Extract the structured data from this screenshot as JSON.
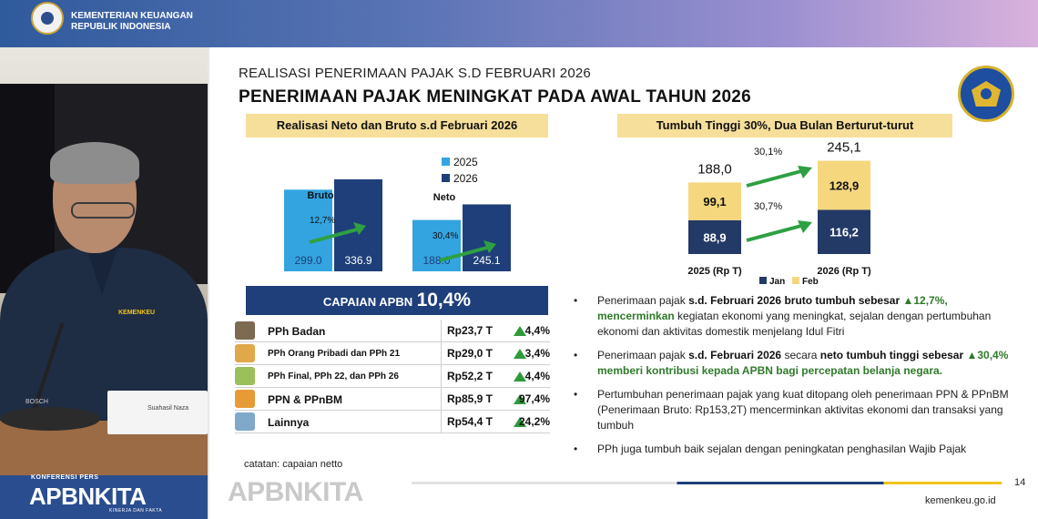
{
  "header": {
    "ministry_line1": "KEMENTERIAN KEUANGAN",
    "ministry_line2": "REPUBLIK INDONESIA"
  },
  "video": {
    "badge": "KEMENKEU",
    "nameplate": "Suahasil Naza",
    "mic_brand": "BOSCH"
  },
  "brand_left": {
    "kicker": "KONFERENSI PERS",
    "name": "APBNKITA",
    "tagline": "KINERJA DAN FAKTA"
  },
  "slide": {
    "kicker": "REALISASI PENERIMAAN PAJAK S.D FEBRUARI 2026",
    "headline": "PENERIMAAN PAJAK MENINGKAT PADA AWAL TAHUN 2026",
    "left_chart_title": "Realisasi Neto dan Bruto s.d Februari 2026",
    "right_chart_title": "Tumbuh Tinggi 30%, Dua Bulan Berturut-turut",
    "capaian_label": "CAPAIAN APBN",
    "capaian_value": "10,4%",
    "table": [
      {
        "name": "PPh Badan",
        "value": "Rp23,7 T",
        "pct": "4,4%"
      },
      {
        "name": "PPh Orang Pribadi dan PPh 21",
        "value": "Rp29,0 T",
        "pct": "3,4%"
      },
      {
        "name": "PPh Final, PPh 22, dan PPh 26",
        "value": "Rp52,2 T",
        "pct": "4,4%"
      },
      {
        "name": "PPN & PPnBM",
        "value": "Rp85,9 T",
        "pct": "97,4%"
      },
      {
        "name": "Lainnya",
        "value": "Rp54,4 T",
        "pct": "24,2%"
      }
    ],
    "note": "catatan: capaian netto",
    "bullets": [
      {
        "t1": "Penerimaan pajak ",
        "b1": "s.d. Februari 2026 bruto tumbuh sebesar ",
        "g1": "▲12,7%, mencerminkan",
        "t2": " kegiatan ekonomi yang meningkat, sejalan dengan pertumbuhan ekonomi dan aktivitas domestik menjelang Idul Fitri"
      },
      {
        "t1": "Penerimaan pajak ",
        "b1": "s.d. Februari 2026",
        "t2": " secara ",
        "b2": "neto tumbuh tinggi sebesar ",
        "g1": "▲30,4% memberi kontribusi kepada APBN bagi percepatan belanja negara."
      },
      {
        "t1": "Pertumbuhan penerimaan pajak yang kuat ditopang oleh penerimaan PPN & PPnBM (Penerimaan Bruto: Rp153,2T) mencerminkan aktivitas ekonomi dan transaksi yang tumbuh"
      },
      {
        "t1": "PPh juga tumbuh baik sejalan dengan peningkatan penghasilan Wajib Pajak"
      }
    ],
    "footer_brand": "APBNKITA",
    "page_number": "14",
    "site": "kemenkeu.go.id"
  },
  "colors": {
    "bar_2025": "#33a4e0",
    "bar_2026": "#1f3f7a",
    "stack_feb": "#f5d77e",
    "stack_jan": "#243a66",
    "arrow_green": "#2ea043"
  },
  "chart_data": [
    {
      "type": "bar",
      "title": "Realisasi Neto dan Bruto s.d Februari 2026",
      "categories": [
        "Bruto",
        "Neto"
      ],
      "series": [
        {
          "name": "2025",
          "values": [
            299.0,
            188.0
          ]
        },
        {
          "name": "2026",
          "values": [
            336.9,
            245.1
          ]
        }
      ],
      "growth_labels": [
        "12,7%",
        "30,4%"
      ],
      "legend": "top-center",
      "ylim": [
        0,
        360
      ]
    },
    {
      "type": "bar",
      "stacked": true,
      "title": "Tumbuh Tinggi 30%, Dua Bulan Berturut-turut",
      "categories": [
        "2025 (Rp T)",
        "2026 (Rp T)"
      ],
      "series": [
        {
          "name": "Jan",
          "values": [
            88.9,
            116.2
          ],
          "labels": [
            "88,9",
            "116,2"
          ]
        },
        {
          "name": "Feb",
          "values": [
            99.1,
            128.9
          ],
          "labels": [
            "99,1",
            "128,9"
          ]
        }
      ],
      "totals": [
        "188,0",
        "245,1"
      ],
      "growth_labels": [
        "30,1%",
        "30,7%"
      ],
      "legend": "bottom-center",
      "ylim": [
        0,
        260
      ]
    }
  ]
}
